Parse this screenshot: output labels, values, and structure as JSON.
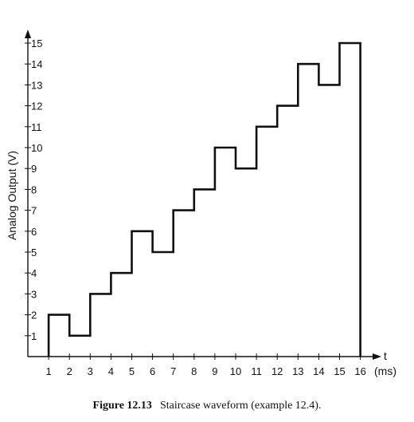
{
  "chart_data": {
    "type": "line",
    "step": true,
    "xlabel": "t",
    "x_unit": "(ms)",
    "ylabel": "Analog Output (V)",
    "xlim": [
      0,
      16
    ],
    "ylim": [
      0,
      16
    ],
    "x_ticks": [
      "1",
      "2",
      "3",
      "4",
      "5",
      "6",
      "7",
      "8",
      "9",
      "10",
      "11",
      "12",
      "13",
      "14",
      "15",
      "16"
    ],
    "y_ticks": [
      "1",
      "2",
      "3",
      "4",
      "5",
      "6",
      "7",
      "8",
      "9",
      "10",
      "11",
      "12",
      "13",
      "14",
      "15"
    ],
    "series": [
      {
        "x": [
          1,
          2,
          3,
          4,
          5,
          6,
          7,
          8,
          9,
          10,
          11,
          12,
          13,
          14,
          15
        ],
        "values": [
          2,
          1,
          3,
          4,
          6,
          5,
          7,
          8,
          10,
          9,
          11,
          12,
          14,
          13,
          15
        ]
      }
    ]
  },
  "caption": {
    "figure": "Figure 12.13",
    "text": "Staircase waveform (example 12.4)."
  }
}
